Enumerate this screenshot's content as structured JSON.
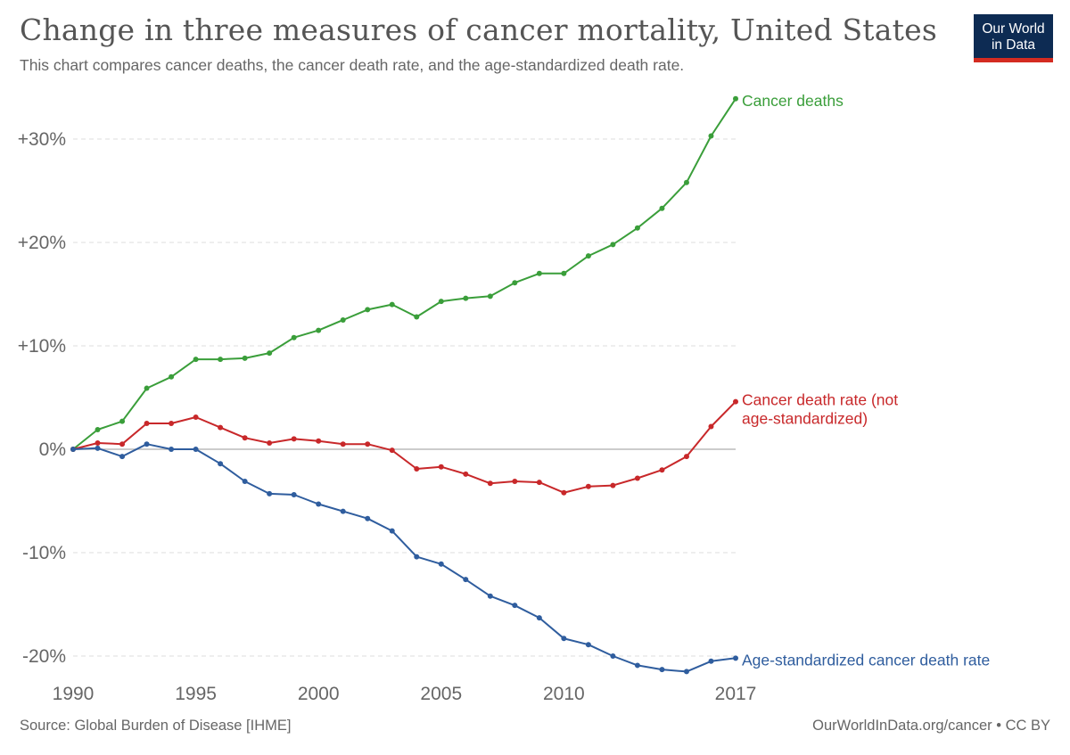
{
  "header": {
    "title": "Change in three measures of cancer mortality, United States",
    "subtitle": "This chart compares cancer deaths, the cancer death rate, and the age-standardized death rate."
  },
  "logo": {
    "line1": "Our World",
    "line2": "in Data",
    "bg_color": "#0d2b53",
    "bar_color": "#d42b21"
  },
  "footer": {
    "source": "Source: Global Burden of Disease [IHME]",
    "url": "OurWorldInData.org/cancer • CC BY"
  },
  "chart_data": {
    "type": "line",
    "x": [
      1990,
      1991,
      1992,
      1993,
      1994,
      1995,
      1996,
      1997,
      1998,
      1999,
      2000,
      2001,
      2002,
      2003,
      2004,
      2005,
      2006,
      2007,
      2008,
      2009,
      2010,
      2011,
      2012,
      2013,
      2014,
      2015,
      2016,
      2017
    ],
    "x_ticks": [
      1990,
      1995,
      2000,
      2005,
      2010,
      2017
    ],
    "x_tick_labels": [
      "1990",
      "1995",
      "2000",
      "2005",
      "2010",
      "2017"
    ],
    "y_ticks": [
      30,
      20,
      10,
      0,
      -10,
      -20
    ],
    "y_tick_labels": [
      "+30%",
      "+20%",
      "+10%",
      "0%",
      "-10%",
      "-20%"
    ],
    "xlim": [
      1990,
      2017
    ],
    "ylim": [
      -22,
      35
    ],
    "grid": "horizontal-dashed",
    "series": [
      {
        "name": "Cancer deaths",
        "label_lines": [
          "Cancer deaths"
        ],
        "color": "#3a9e3a",
        "values": [
          0,
          1.9,
          2.7,
          5.9,
          7.0,
          8.7,
          8.7,
          8.8,
          9.3,
          10.8,
          11.5,
          12.5,
          13.5,
          14.0,
          12.8,
          14.3,
          14.6,
          14.8,
          16.1,
          17.0,
          17.0,
          18.7,
          19.8,
          21.4,
          23.3,
          25.8,
          30.3,
          33.9
        ]
      },
      {
        "name": "Cancer death rate (not age-standardized)",
        "label_lines": [
          "Cancer death rate (not",
          "age-standardized)"
        ],
        "color": "#c8282a",
        "values": [
          0,
          0.6,
          0.5,
          2.5,
          2.5,
          3.1,
          2.1,
          1.1,
          0.6,
          1.0,
          0.8,
          0.5,
          0.5,
          -0.1,
          -1.9,
          -1.7,
          -2.4,
          -3.3,
          -3.1,
          -3.2,
          -4.2,
          -3.6,
          -3.5,
          -2.8,
          -2.0,
          -0.7,
          2.2,
          4.6
        ]
      },
      {
        "name": "Age-standardized cancer death rate",
        "label_lines": [
          "Age-standardized cancer death rate"
        ],
        "color": "#2f5d9e",
        "values": [
          0,
          0.1,
          -0.7,
          0.5,
          0.0,
          0.0,
          -1.4,
          -3.1,
          -4.3,
          -4.4,
          -5.3,
          -6.0,
          -6.7,
          -7.9,
          -10.4,
          -11.1,
          -12.6,
          -14.2,
          -15.1,
          -16.3,
          -18.3,
          -18.9,
          -20.0,
          -20.9,
          -21.3,
          -21.5,
          -20.5,
          -20.2
        ]
      }
    ]
  }
}
